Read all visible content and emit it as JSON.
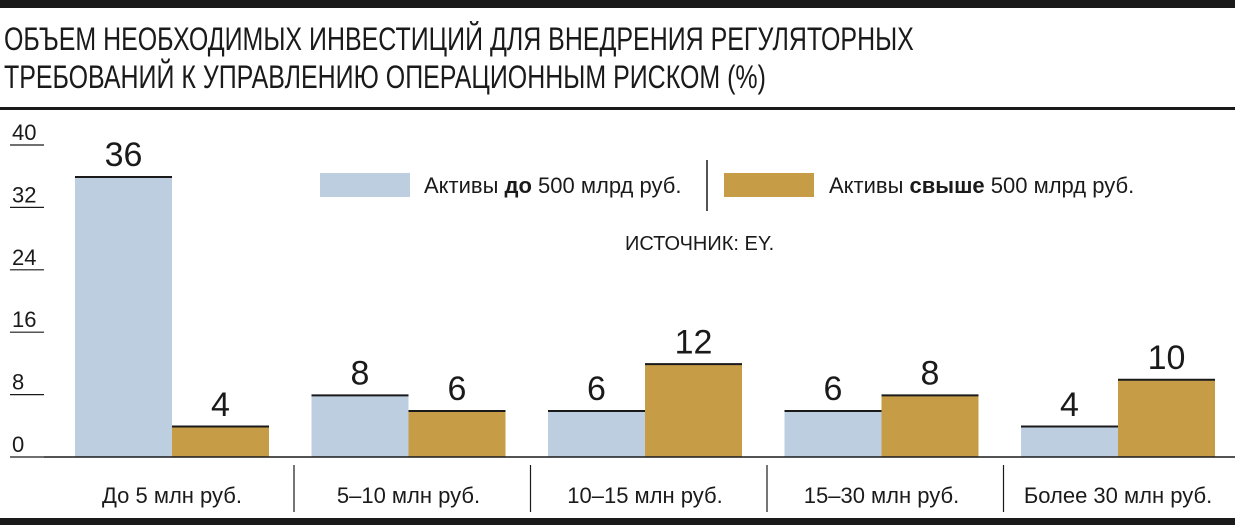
{
  "chart_data": {
    "type": "bar",
    "title": "ОБЪЕМ НЕОБХОДИМЫХ ИНВЕСТИЦИЙ ДЛЯ ВНЕДРЕНИЯ РЕГУЛЯТОРНЫХ ТРЕБОВАНИЙ К УПРАВЛЕНИЮ ОПЕРАЦИОННЫМ РИСКОМ (%)",
    "title_lines": [
      "ОБЪЕМ НЕОБХОДИМЫХ ИНВЕСТИЦИЙ ДЛЯ ВНЕДРЕНИЯ РЕГУЛЯТОРНЫХ",
      "ТРЕБОВАНИЙ К УПРАВЛЕНИЮ ОПЕРАЦИОННЫМ РИСКОМ (%)"
    ],
    "categories": [
      "До 5 млн руб.",
      "5–10 млн руб.",
      "10–15 млн руб.",
      "15–30 млн руб.",
      "Более 30 млн руб."
    ],
    "series": [
      {
        "name": "Активы до 500 млрд руб.",
        "name_parts": [
          "Активы ",
          "до",
          " 500 млрд руб."
        ],
        "values": [
          36,
          8,
          6,
          6,
          4
        ],
        "color": "#bccedf"
      },
      {
        "name": "Активы свыше 500 млрд руб.",
        "name_parts": [
          "Активы ",
          "свыше",
          " 500 млрд руб."
        ],
        "values": [
          4,
          6,
          12,
          8,
          10
        ],
        "color": "#c69c47"
      }
    ],
    "yticks": [
      0,
      8,
      16,
      24,
      32,
      40
    ],
    "ylim": [
      0,
      40
    ],
    "xlabel": "",
    "ylabel": "",
    "grid": false,
    "legend_position": "top",
    "source": "ИСТОЧНИК: EY."
  }
}
